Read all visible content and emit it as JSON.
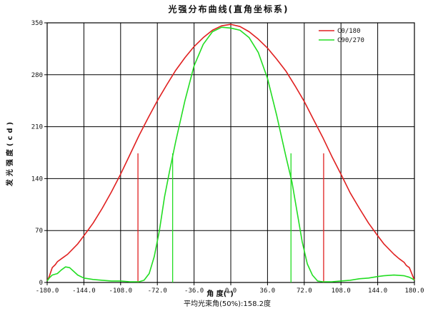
{
  "chart_data": {
    "type": "line",
    "title": "光强分布曲线(直角坐标系)",
    "xlabel": "角 度(°)",
    "ylabel": "发光强度(cd)",
    "subtitle": "平均光束角(50%):158.2度",
    "xlim": [
      -180,
      180
    ],
    "ylim": [
      0,
      350
    ],
    "xticks": [
      -180,
      -144,
      -108,
      -72,
      -36,
      0,
      36,
      72,
      108,
      144,
      180
    ],
    "xtick_labels": [
      "-180.0",
      "-144.0",
      "-108.0",
      "-72.0",
      "-36.0",
      "0.0",
      "36.0",
      "72.0",
      "108.0",
      "144.0",
      "180.0"
    ],
    "yticks": [
      0,
      70,
      140,
      210,
      280,
      350
    ],
    "ytick_labels": [
      "0",
      "70",
      "140",
      "210",
      "280",
      "350"
    ],
    "grid": true,
    "legend_position": "top-right",
    "series": [
      {
        "name": "C0/180",
        "color": "#e02020",
        "x": [
          -180,
          -178,
          -175,
          -172,
          -170,
          -165,
          -160,
          -150,
          -144,
          -135,
          -126,
          -117,
          -108,
          -99,
          -90,
          -81,
          -72,
          -63,
          -54,
          -45,
          -36,
          -27,
          -18,
          -9,
          0,
          9,
          18,
          27,
          36,
          45,
          54,
          63,
          72,
          81,
          90,
          99,
          108,
          117,
          126,
          135,
          144,
          150,
          160,
          165,
          170,
          172,
          175,
          178,
          180
        ],
        "values": [
          2,
          8,
          20,
          24,
          28,
          33,
          38,
          52,
          63,
          80,
          100,
          122,
          146,
          172,
          198,
          222,
          245,
          266,
          286,
          303,
          318,
          330,
          340,
          346,
          348,
          345,
          338,
          328,
          316,
          301,
          285,
          265,
          244,
          220,
          196,
          170,
          146,
          121,
          100,
          80,
          63,
          52,
          38,
          32,
          27,
          23,
          20,
          10,
          3
        ],
        "cutoff_lines": [
          -91,
          91
        ],
        "cutoff_value": 174
      },
      {
        "name": "C90/270",
        "color": "#22dd22",
        "x": [
          -180,
          -178,
          -175,
          -170,
          -166,
          -162,
          -158,
          -154,
          -150,
          -144,
          -135,
          -126,
          -117,
          -108,
          -99,
          -90,
          -85,
          -80,
          -75,
          -70,
          -65,
          -60,
          -54,
          -45,
          -36,
          -27,
          -18,
          -9,
          0,
          9,
          18,
          27,
          36,
          45,
          54,
          60,
          65,
          70,
          75,
          80,
          85,
          90,
          99,
          108,
          117,
          126,
          135,
          144,
          150,
          160,
          170,
          175,
          178,
          180
        ],
        "values": [
          2,
          6,
          10,
          12,
          17,
          21,
          20,
          15,
          10,
          6,
          4,
          3,
          2,
          2,
          1,
          1,
          3,
          12,
          35,
          70,
          115,
          150,
          190,
          245,
          292,
          321,
          338,
          344,
          343,
          340,
          330,
          310,
          275,
          225,
          170,
          135,
          95,
          55,
          25,
          10,
          2,
          1,
          1,
          2,
          3,
          5,
          6,
          8,
          9,
          10,
          9,
          7,
          5,
          3
        ],
        "cutoff_lines": [
          -57,
          59
        ],
        "cutoff_value": 174
      }
    ]
  }
}
